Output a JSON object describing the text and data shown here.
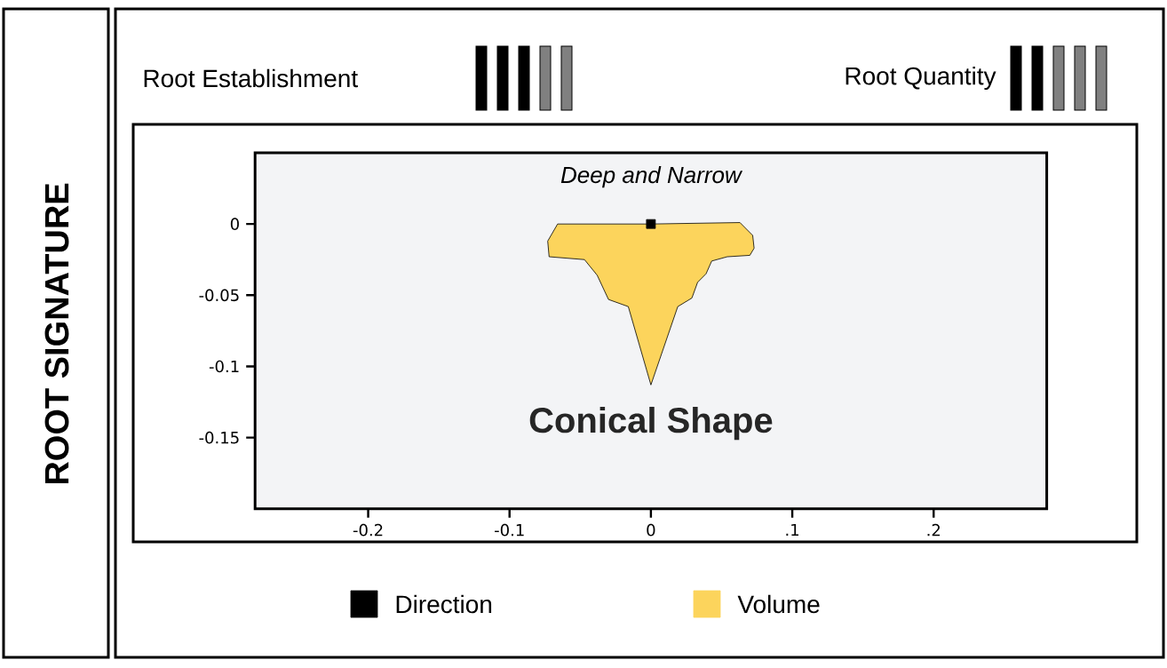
{
  "chart_data": {
    "type": "area",
    "title": "ROOT SIGNATURE",
    "subtitle": "Deep and Narrow",
    "annotations": [
      "Root Establishment",
      "Root Quantity",
      "Conical Shape"
    ],
    "xlim": [
      -0.28,
      0.28
    ],
    "ylim": [
      -0.2,
      0.05
    ],
    "xticks": [
      -0.2,
      -0.1,
      0,
      {
        "value": 0.1,
        "label": ".1"
      },
      {
        "value": 0.2,
        "label": ".2"
      }
    ],
    "yticks": [
      0,
      -0.05,
      -0.1,
      -0.15
    ],
    "grid": false,
    "legend": "bottom",
    "series": [
      {
        "name": "Direction",
        "type": "scatter",
        "color": "#000000",
        "marker": "square",
        "x": [
          0
        ],
        "values": [
          0
        ]
      },
      {
        "name": "Volume",
        "color": "#fcd45c",
        "x": [
          0,
          0.063,
          0.072,
          0.073,
          0.07,
          0.054,
          0.043,
          0.039,
          0.033,
          0.029,
          0.019,
          0,
          -0.016,
          -0.03,
          -0.038,
          -0.047,
          -0.072,
          -0.073,
          -0.066,
          0
        ],
        "values": [
          0,
          0.001,
          -0.008,
          -0.017,
          -0.022,
          -0.023,
          -0.026,
          -0.035,
          -0.041,
          -0.052,
          -0.058,
          -0.113,
          -0.058,
          -0.053,
          -0.036,
          -0.025,
          -0.023,
          -0.012,
          0,
          0
        ]
      }
    ]
  }
}
